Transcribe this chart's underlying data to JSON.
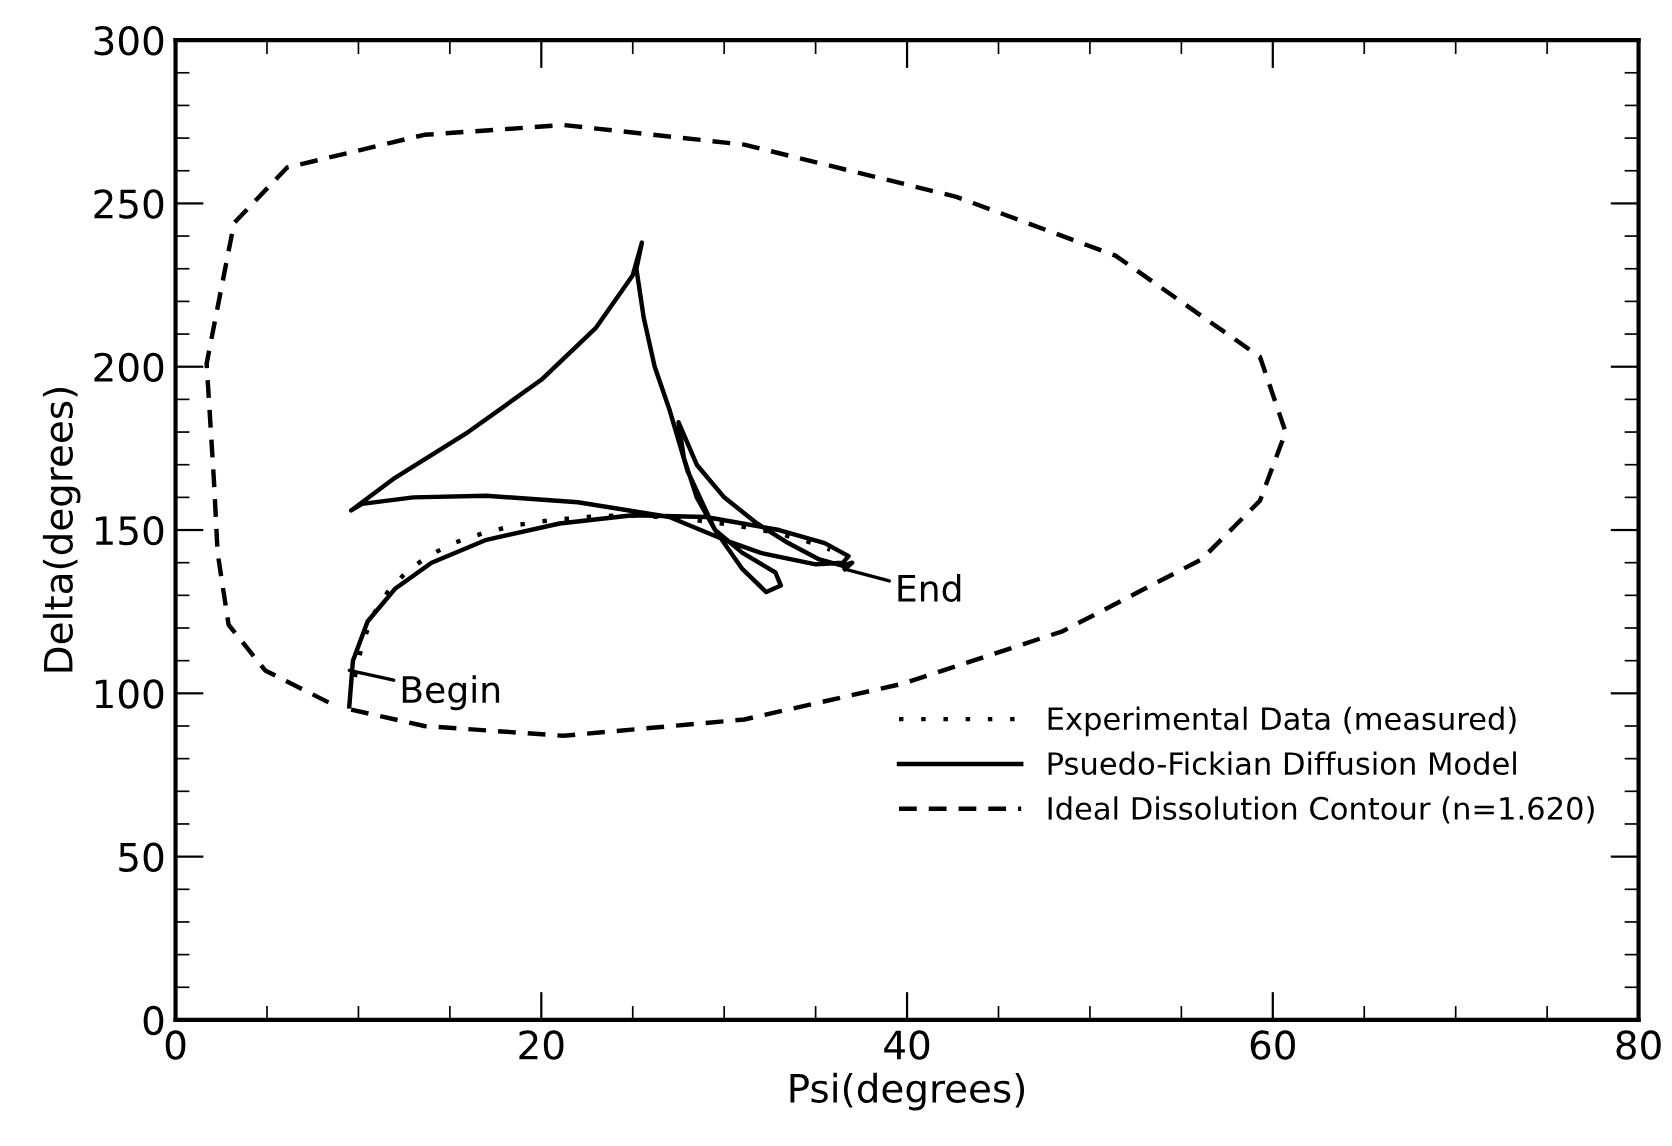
{
  "chart_data": {
    "type": "line",
    "xlabel": "Psi(degrees)",
    "ylabel": "Delta(degrees)",
    "xlim": [
      0,
      80
    ],
    "xticks": [
      0,
      20,
      40,
      60,
      80
    ],
    "ylim": [
      0,
      300
    ],
    "yticks": [
      0,
      50,
      100,
      150,
      200,
      250,
      300
    ],
    "grid": false,
    "legend": "bottom right",
    "annotations": [
      {
        "text": "Begin",
        "x": 9.5,
        "y": 107
      },
      {
        "text": "End",
        "x": 36.6,
        "y": 138
      }
    ],
    "series": [
      {
        "name": "Experimental Data (measured)",
        "color": "#000000",
        "type": "line",
        "line_style": "dotted",
        "x": [
          9.8,
          10.2,
          10.8,
          11.6,
          12.6,
          13.8,
          15.2,
          16.8,
          18.6,
          20.5,
          22.5,
          24.5,
          26.5,
          28.5,
          30.5,
          32.5,
          34.3,
          35.8
        ],
        "values": [
          105,
          115,
          124,
          131,
          137,
          142,
          146,
          149,
          151.5,
          153,
          154,
          154.5,
          154,
          153,
          151.5,
          149.5,
          147,
          144
        ]
      },
      {
        "name": "Psuedo-Fickian Diffusion Model",
        "color": "#000000",
        "line_style": "solid",
        "x": [
          9.5,
          9.7,
          10.5,
          12,
          14,
          17,
          21,
          25,
          29,
          33,
          35.5,
          36.8,
          36.5,
          35,
          32,
          30,
          27,
          22,
          17,
          13,
          10.2,
          9.6,
          12,
          16,
          20,
          23,
          25,
          25.5,
          25.2,
          25.6,
          26.2,
          27,
          28,
          29.5,
          31,
          32.3,
          33.1,
          32.8,
          31,
          29.5,
          28.5,
          27.8,
          27.5,
          28.5,
          30,
          31.8,
          33.5,
          35.2,
          36.5,
          37,
          36.6
        ],
        "values": [
          96,
          110,
          122,
          132,
          140,
          147,
          152,
          154.5,
          154,
          150,
          146,
          142,
          140,
          139.5,
          143,
          147,
          154,
          158.5,
          160.5,
          160,
          158,
          156,
          166,
          180,
          196,
          212,
          228,
          238,
          230,
          215,
          200,
          187,
          168,
          150,
          138,
          131,
          133,
          137,
          143,
          150,
          160,
          172,
          183,
          170,
          160,
          152,
          146,
          141,
          139,
          140,
          138
        ]
      },
      {
        "name": "Ideal Dissolution Contour (n=1.620)",
        "color": "#000000",
        "line_style": "dashed",
        "x": [
          9.6,
          13.6,
          21.2,
          31.1,
          39.8,
          48.5,
          56.1,
          59.3,
          60.7,
          59.3,
          51.4,
          42.7,
          31.1,
          21.2,
          13.6,
          6.1,
          3.2,
          1.7,
          2.1,
          2.3,
          2.9,
          4.9,
          8.8
        ],
        "values": [
          95,
          90,
          87,
          92,
          103,
          119,
          141,
          159,
          180,
          203,
          234,
          252,
          268,
          274,
          271,
          261,
          244,
          201,
          165,
          143,
          121,
          107,
          96
        ]
      }
    ]
  }
}
